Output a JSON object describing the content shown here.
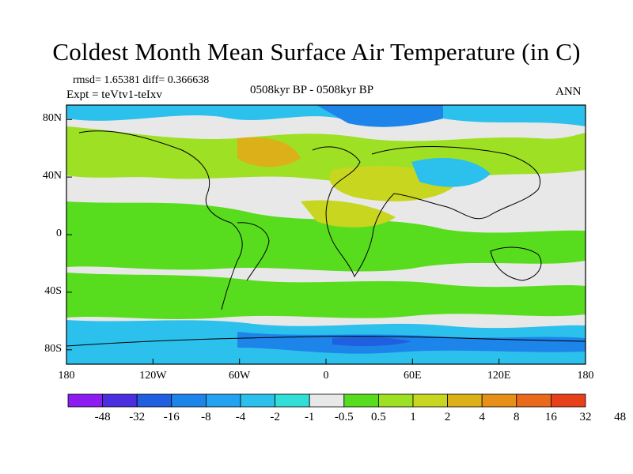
{
  "title": "Coldest Month Mean Surface Air Temperature (in C)",
  "stats": "rmsd= 1.65381 diff= 0.366638",
  "experiment": "Expt = teVtv1-teIxv",
  "period": "0508kyr BP - 0508kyr BP",
  "season": "ANN",
  "map": {
    "projection": "cylindrical equidistant",
    "lon_range": [
      -180,
      180
    ],
    "lat_range": [
      -90,
      90
    ],
    "y_ticks": [
      {
        "value": 80,
        "label": "80N"
      },
      {
        "value": 40,
        "label": "40N"
      },
      {
        "value": 0,
        "label": "0"
      },
      {
        "value": -40,
        "label": "40S"
      },
      {
        "value": -80,
        "label": "80S"
      }
    ],
    "x_ticks": [
      {
        "value": -180,
        "label": "180"
      },
      {
        "value": -120,
        "label": "120W"
      },
      {
        "value": -60,
        "label": "60W"
      },
      {
        "value": 0,
        "label": "0"
      },
      {
        "value": 60,
        "label": "60E"
      },
      {
        "value": 120,
        "label": "120E"
      },
      {
        "value": 180,
        "label": "180"
      }
    ]
  },
  "colorbar": {
    "colors": [
      "#8c1cf2",
      "#4a2ee0",
      "#1f5fe0",
      "#1d84ea",
      "#22a3f0",
      "#2cc0ec",
      "#30e0d8",
      "#e8e8e8",
      "#58dc1e",
      "#9ee024",
      "#c8d620",
      "#dcb018",
      "#e6901a",
      "#ea6a1c",
      "#e8401a"
    ],
    "levels": [
      "-48",
      "-32",
      "-16",
      "-8",
      "-4",
      "-2",
      "-1",
      "-0.5",
      "0.5",
      "1",
      "2",
      "4",
      "8",
      "16",
      "32",
      "48"
    ]
  }
}
